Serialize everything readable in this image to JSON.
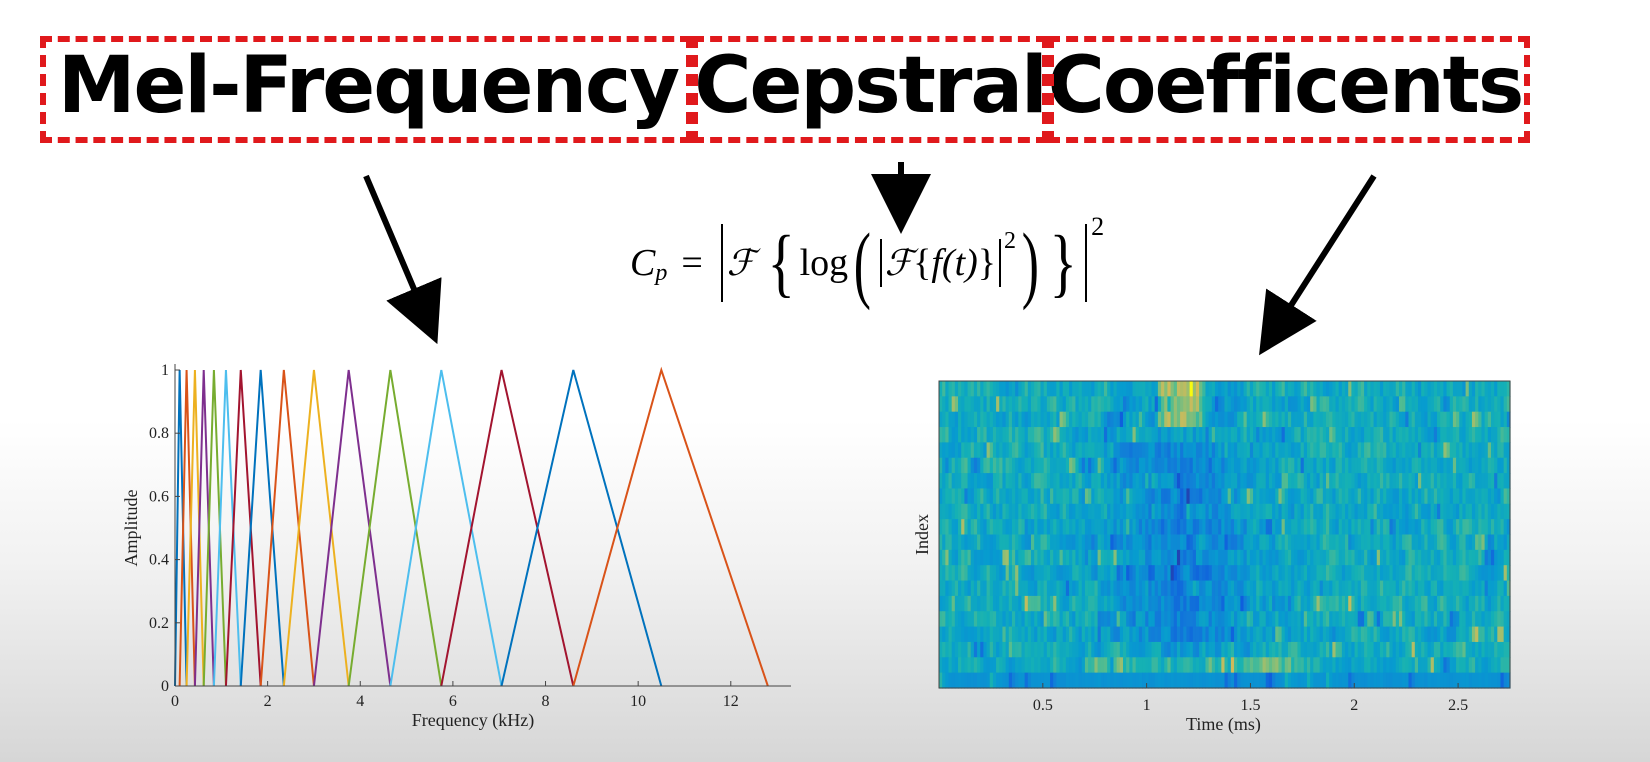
{
  "title": {
    "words": [
      "Mel-Frequency",
      "Cepstral",
      "Coefficents"
    ],
    "box_color": "#e0191c"
  },
  "formula": {
    "lhs": "C",
    "lhs_sub": "p",
    "equals": "=",
    "script_f": "ℱ",
    "log": "log",
    "f_of_t": "f(t)",
    "exponent": "2"
  },
  "filterbank_chart": {
    "chart_data": {
      "type": "line",
      "title": "",
      "xlabel": "Frequency (kHz)",
      "ylabel": "Amplitude",
      "xlim": [
        0,
        13.3
      ],
      "ylim": [
        0,
        1
      ],
      "xticks": [
        "0",
        "2",
        "4",
        "6",
        "8",
        "10",
        "12"
      ],
      "yticks": [
        "0",
        "0.2",
        "0.4",
        "0.6",
        "0.8",
        "1"
      ],
      "centers_khz": [
        0.1,
        0.25,
        0.43,
        0.62,
        0.84,
        1.1,
        1.42,
        1.85,
        2.35,
        3.0,
        3.75,
        4.65,
        5.75,
        7.05,
        8.6,
        10.5
      ],
      "final_edge_khz": 12.8,
      "colors": [
        "#0072BD",
        "#D95319",
        "#EDB120",
        "#7E2F8E",
        "#77AC30",
        "#4DBEEE",
        "#A2142F"
      ]
    }
  },
  "mfcc_chart": {
    "chart_data": {
      "type": "heatmap",
      "title": "",
      "xlabel": "Time (ms)",
      "ylabel": "Index",
      "xlim": [
        0,
        2.75
      ],
      "xticks": [
        "0.5",
        "1",
        "1.5",
        "2",
        "2.5"
      ],
      "rows": 20,
      "cols": 180,
      "colormap": "parula"
    }
  }
}
